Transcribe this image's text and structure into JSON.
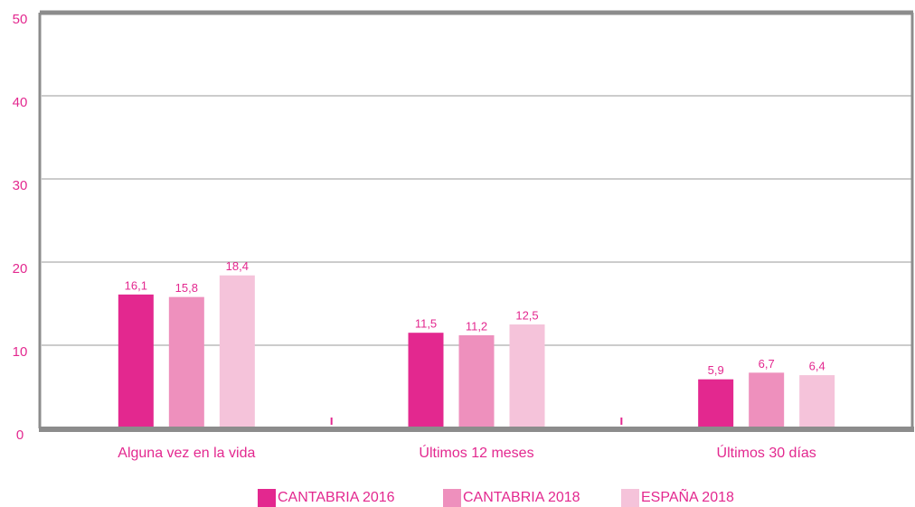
{
  "chart_data": {
    "type": "bar",
    "categories": [
      "Alguna vez en la vida",
      "Últimos 12 meses",
      "Últimos 30 días"
    ],
    "series": [
      {
        "name": "CANTABRIA 2016",
        "color": "#e3288f",
        "values": [
          16.1,
          11.5,
          5.9
        ],
        "value_labels": [
          "16,1",
          "11,5",
          "5,9"
        ]
      },
      {
        "name": "CANTABRIA 2018",
        "color": "#ee90bd",
        "values": [
          15.8,
          11.2,
          6.7
        ],
        "value_labels": [
          "15,8",
          "11,2",
          "6,7"
        ]
      },
      {
        "name": "ESPAÑA 2018",
        "color": "#f5c3da",
        "values": [
          18.4,
          12.5,
          6.4
        ],
        "value_labels": [
          "18,4",
          "12,5",
          "6,4"
        ]
      }
    ],
    "ylim": [
      0,
      50
    ],
    "yticks": [
      0,
      10,
      20,
      30,
      40,
      50
    ],
    "grid": true,
    "legend": "bottom"
  }
}
